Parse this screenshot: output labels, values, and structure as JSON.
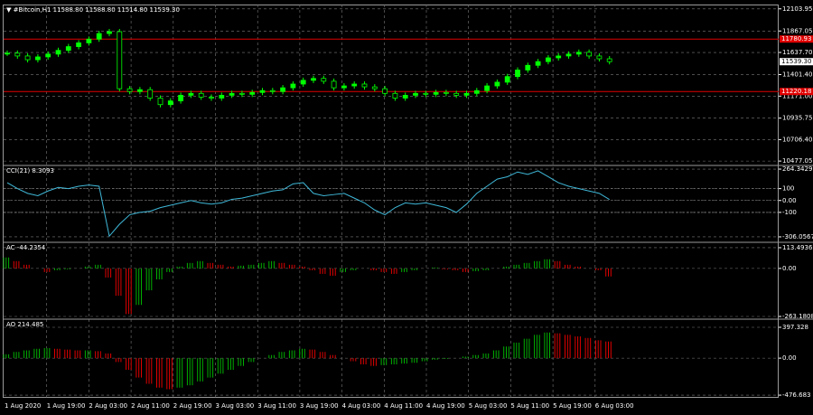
{
  "chart_data": [
    {
      "type": "candlestick",
      "title": "▼ #Bitcoin,H1  11588.80 11588.80 11514.80 11539.30",
      "color": "#00ff00",
      "values": [
        11630,
        11600,
        11560,
        11590,
        11620,
        11660,
        11700,
        11740,
        11780,
        11840,
        11860,
        11250,
        11220,
        11240,
        11150,
        11080,
        11120,
        11180,
        11200,
        11160,
        11150,
        11180,
        11200,
        11190,
        11210,
        11230,
        11220,
        11260,
        11300,
        11340,
        11360,
        11330,
        11260,
        11280,
        11300,
        11270,
        11250,
        11200,
        11150,
        11180,
        11200,
        11190,
        11210,
        11200,
        11180,
        11200,
        11230,
        11280,
        11320,
        11380,
        11450,
        11500,
        11540,
        11580,
        11600,
        11620,
        11640,
        11600,
        11570,
        11539.3
      ],
      "ylim": [
        10430,
        12150
      ],
      "yticks": [
        {
          "value": 12103.95,
          "label": "12103.95"
        },
        {
          "value": 11867.05,
          "label": "11867.05"
        },
        {
          "value": 11637.7,
          "label": "11637.70"
        },
        {
          "value": 11401.4,
          "label": "11401.40"
        },
        {
          "value": 11171,
          "label": "11171.00"
        },
        {
          "value": 10935.75,
          "label": "10935.75"
        },
        {
          "value": 10706.4,
          "label": "10706.40"
        },
        {
          "value": 10477.05,
          "label": "10477.05"
        }
      ],
      "hlines": [
        {
          "value": 11780.93,
          "label": "11780.93",
          "color": "#e00000"
        },
        {
          "value": 11220.18,
          "label": "11220.18",
          "color": "#e00000"
        }
      ],
      "last": {
        "value": 11539.3,
        "label": "11539.30"
      }
    },
    {
      "type": "line",
      "title": "CCI(21) 8.3093",
      "color": "#3fb8d8",
      "values": [
        150,
        100,
        60,
        40,
        80,
        110,
        100,
        120,
        130,
        120,
        -300,
        -200,
        -120,
        -100,
        -90,
        -60,
        -40,
        -20,
        0,
        -20,
        -30,
        -20,
        10,
        20,
        40,
        60,
        80,
        90,
        140,
        150,
        60,
        40,
        50,
        60,
        20,
        -20,
        -80,
        -120,
        -60,
        -20,
        -30,
        -20,
        -40,
        -60,
        -100,
        -30,
        60,
        120,
        180,
        200,
        240,
        220,
        250,
        200,
        150,
        120,
        100,
        80,
        60,
        8.3093
      ],
      "ylim": [
        -352,
        295
      ],
      "yticks": [
        {
          "value": 264.3429,
          "label": "264.3429"
        },
        100,
        {
          "value": 0,
          "label": "0.00"
        },
        -100,
        {
          "value": -306.0567,
          "label": "-306.0567"
        }
      ],
      "levels": [
        100,
        0,
        -100
      ]
    },
    {
      "type": "histogram",
      "title": "AC -44.2354",
      "colors": [
        "#00b000",
        "#e00000"
      ],
      "values": [
        60,
        40,
        20,
        0,
        -20,
        -10,
        -5,
        0,
        10,
        20,
        -50,
        -150,
        -250,
        -200,
        -120,
        -60,
        -20,
        10,
        30,
        40,
        30,
        20,
        10,
        15,
        20,
        30,
        40,
        30,
        20,
        10,
        -10,
        -30,
        -40,
        -20,
        -10,
        0,
        -10,
        -20,
        -30,
        -20,
        -10,
        0,
        5,
        -5,
        -10,
        -20,
        -15,
        -10,
        0,
        10,
        20,
        30,
        40,
        50,
        40,
        20,
        10,
        0,
        -10,
        -44.2354
      ],
      "ylim": [
        -278,
        143
      ],
      "yticks": [
        {
          "value": 113.4936,
          "label": "113.4936"
        },
        {
          "value": 0,
          "label": "0.00"
        },
        {
          "value": -263.1808,
          "label": "-263.1808"
        }
      ]
    },
    {
      "type": "histogram",
      "title": "AO 214.485",
      "colors": [
        "#00b000",
        "#e00000"
      ],
      "values": [
        50,
        80,
        100,
        120,
        130,
        120,
        110,
        100,
        100,
        90,
        60,
        -50,
        -150,
        -250,
        -330,
        -380,
        -400,
        -380,
        -350,
        -300,
        -250,
        -200,
        -150,
        -100,
        -50,
        0,
        40,
        80,
        100,
        120,
        110,
        80,
        40,
        0,
        -40,
        -80,
        -100,
        -90,
        -80,
        -70,
        -60,
        -40,
        -20,
        -10,
        0,
        20,
        40,
        60,
        100,
        150,
        200,
        250,
        300,
        330,
        320,
        300,
        280,
        260,
        230,
        214.485
      ],
      "ylim": [
        -511,
        502
      ],
      "yticks": [
        397.328,
        {
          "value": 0,
          "label": "0.00"
        },
        -476.683
      ]
    }
  ],
  "time_axis": {
    "labels": [
      "1 Aug 2020",
      "1 Aug 19:00",
      "2 Aug 03:00",
      "2 Aug 11:00",
      "2 Aug 19:00",
      "3 Aug 03:00",
      "3 Aug 11:00",
      "3 Aug 19:00",
      "4 Aug 03:00",
      "4 Aug 11:00",
      "4 Aug 19:00",
      "5 Aug 03:00",
      "5 Aug 11:00",
      "5 Aug 19:00",
      "6 Aug 03:00"
    ]
  }
}
